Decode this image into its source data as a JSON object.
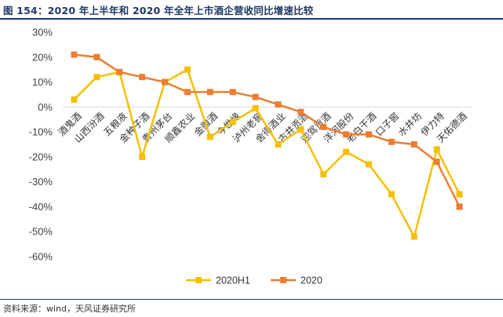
{
  "header": {
    "title": "图 154：2020 年上半年和 2020 年全年上市酒企营收同比增速比较"
  },
  "footer": {
    "source": "资料来源：wind，天风证券研究所"
  },
  "chart_data": {
    "type": "line",
    "categories": [
      "酒鬼酒",
      "山西汾酒",
      "五粮液",
      "金种子酒",
      "贵州茅台",
      "顺鑫农业",
      "金徽酒",
      "今世缘",
      "泸州老窖",
      "舍得酒业",
      "古井贡酒",
      "迎驾贡酒",
      "洋河股份",
      "老白干酒",
      "口子窖",
      "水井坊",
      "伊力特",
      "天佑德酒"
    ],
    "series": [
      {
        "name": "2020H1",
        "color": "#f5c000",
        "values": [
          3,
          12,
          14,
          -20,
          10,
          15,
          -12,
          -6,
          -0.5,
          -15,
          -9,
          -27,
          -18,
          -23,
          -35,
          -52,
          -17,
          -35
        ]
      },
      {
        "name": "2020",
        "color": "#ed7d31",
        "values": [
          21,
          20,
          14,
          12,
          10,
          6,
          6,
          6,
          4,
          1,
          -2,
          -8,
          -11,
          -11,
          -14,
          -15,
          -22,
          -40
        ]
      }
    ],
    "yticks": [
      "30%",
      "20%",
      "10%",
      "0%",
      "-10%",
      "-20%",
      "-30%",
      "-40%",
      "-50%",
      "-60%"
    ],
    "ylim": [
      -60,
      30
    ],
    "legend": "bottom",
    "grid": false
  }
}
